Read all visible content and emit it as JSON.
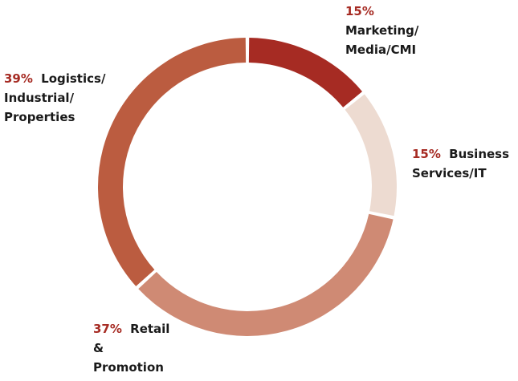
{
  "chart_data": {
    "type": "donut",
    "categories": [
      "Marketing/ Media/CMI",
      "Business Services/IT",
      "Retail & Promotion",
      "Logistics/ Industrial/ Properties"
    ],
    "values": [
      15,
      15,
      37,
      39
    ],
    "value_labels": [
      "15%",
      "15%",
      "37%",
      "39%"
    ],
    "colors": [
      "#a62b23",
      "#eddbd1",
      "#cf8a74",
      "#bb5c40"
    ],
    "label_color": "#a62b23"
  }
}
